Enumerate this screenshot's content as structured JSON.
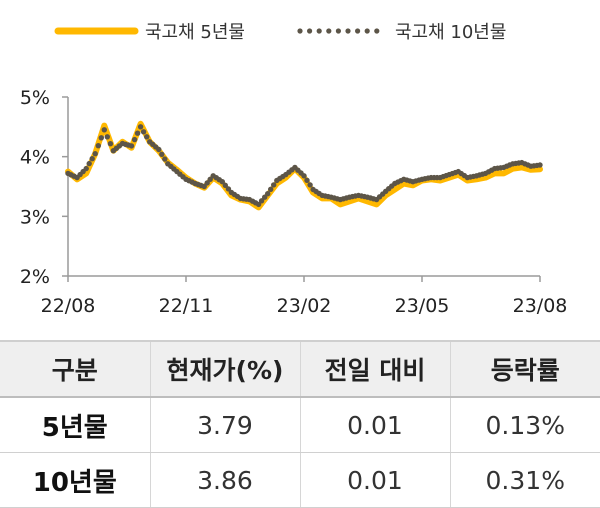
{
  "chart_data": {
    "type": "line",
    "xlabel": "",
    "ylabel": "",
    "x_ticks": [
      "22/08",
      "22/11",
      "23/02",
      "23/05",
      "23/08"
    ],
    "y_ticks": [
      "5%",
      "4%",
      "3%",
      "2%"
    ],
    "ylim": [
      2,
      5
    ],
    "grid": false,
    "legend": "top",
    "x": [
      "22/08/16",
      "22/08/23",
      "22/08/30",
      "22/09/06",
      "22/09/13",
      "22/09/20",
      "22/09/27",
      "22/10/04",
      "22/10/11",
      "22/10/18",
      "22/10/25",
      "22/11/01",
      "22/11/08",
      "22/11/15",
      "22/11/22",
      "22/11/29",
      "22/12/06",
      "22/12/13",
      "22/12/20",
      "22/12/27",
      "23/01/03",
      "23/01/10",
      "23/01/17",
      "23/01/24",
      "23/01/31",
      "23/02/07",
      "23/02/14",
      "23/02/21",
      "23/02/28",
      "23/03/07",
      "23/03/14",
      "23/03/21",
      "23/03/28",
      "23/04/04",
      "23/04/11",
      "23/04/18",
      "23/04/25",
      "23/05/02",
      "23/05/09",
      "23/05/16",
      "23/05/23",
      "23/05/30",
      "23/06/06",
      "23/06/13",
      "23/06/20",
      "23/06/27",
      "23/07/04",
      "23/07/11",
      "23/07/18",
      "23/07/25",
      "23/08/01",
      "23/08/08",
      "23/08/15"
    ],
    "series": [
      {
        "name": "국고채 5년물",
        "color": "#FFB800",
        "values": [
          3.75,
          3.62,
          3.72,
          4.05,
          4.52,
          4.1,
          4.25,
          4.15,
          4.55,
          4.25,
          4.1,
          3.9,
          3.78,
          3.65,
          3.55,
          3.48,
          3.65,
          3.55,
          3.35,
          3.28,
          3.25,
          3.15,
          3.35,
          3.55,
          3.65,
          3.8,
          3.65,
          3.4,
          3.3,
          3.3,
          3.2,
          3.25,
          3.3,
          3.25,
          3.2,
          3.35,
          3.45,
          3.55,
          3.52,
          3.6,
          3.62,
          3.6,
          3.65,
          3.7,
          3.6,
          3.62,
          3.65,
          3.72,
          3.72,
          3.8,
          3.82,
          3.78,
          3.79
        ]
      },
      {
        "name": "국고채 10년물",
        "color": "#5C5548",
        "values": [
          3.72,
          3.65,
          3.8,
          4.05,
          4.45,
          4.1,
          4.22,
          4.18,
          4.5,
          4.25,
          4.12,
          3.88,
          3.75,
          3.62,
          3.55,
          3.5,
          3.68,
          3.58,
          3.4,
          3.3,
          3.28,
          3.2,
          3.38,
          3.6,
          3.7,
          3.82,
          3.68,
          3.45,
          3.35,
          3.32,
          3.28,
          3.32,
          3.35,
          3.32,
          3.28,
          3.42,
          3.55,
          3.62,
          3.58,
          3.62,
          3.65,
          3.65,
          3.7,
          3.75,
          3.65,
          3.68,
          3.72,
          3.8,
          3.82,
          3.88,
          3.9,
          3.84,
          3.86
        ]
      }
    ]
  },
  "table": {
    "headers": [
      "구분",
      "현재가(%)",
      "전일 대비",
      "등락률"
    ],
    "rows": [
      {
        "label": "5년물",
        "price": "3.79",
        "change": "0.01",
        "rate": "0.13%"
      },
      {
        "label": "10년물",
        "price": "3.86",
        "change": "0.01",
        "rate": "0.31%"
      }
    ]
  }
}
